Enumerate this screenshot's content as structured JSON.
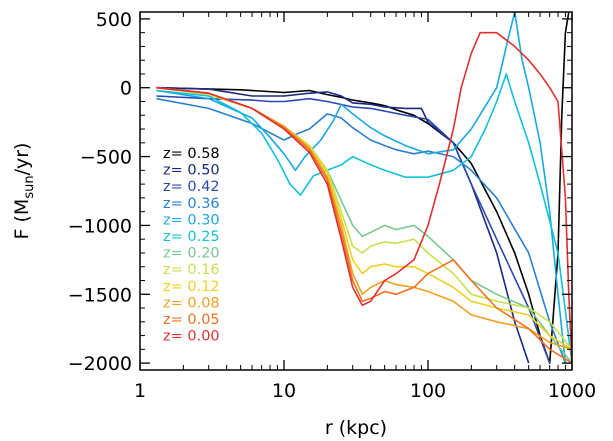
{
  "chart_data": {
    "type": "line",
    "title": "",
    "xlabel": "r (kpc)",
    "ylabel_parts": {
      "main": "F (M",
      "sub": "sun",
      "tail": "/yr)"
    },
    "xscale": "log",
    "xlim": [
      1,
      1000
    ],
    "ylim": [
      -2050,
      550
    ],
    "xticks": [
      {
        "value": 1,
        "label": "1"
      },
      {
        "value": 10,
        "label": "10"
      },
      {
        "value": 100,
        "label": "100"
      },
      {
        "value": 1000,
        "label": "1000"
      }
    ],
    "yticks": [
      {
        "value": 500,
        "label": "500"
      },
      {
        "value": 0,
        "label": "0"
      },
      {
        "value": -500,
        "label": "−500"
      },
      {
        "value": -1000,
        "label": "−1000"
      },
      {
        "value": -1500,
        "label": "−1500"
      },
      {
        "value": -2000,
        "label": "−2000"
      }
    ],
    "grid": false,
    "legend_position": "left",
    "series": [
      {
        "name": "z= 0.58",
        "color": "#000000",
        "points": [
          [
            1.3,
            0
          ],
          [
            5,
            -15
          ],
          [
            10,
            -35
          ],
          [
            15,
            -20
          ],
          [
            20,
            -50
          ],
          [
            25,
            -70
          ],
          [
            30,
            -90
          ],
          [
            40,
            -110
          ],
          [
            50,
            -130
          ],
          [
            60,
            -160
          ],
          [
            80,
            -200
          ],
          [
            100,
            -260
          ],
          [
            150,
            -400
          ],
          [
            200,
            -550
          ],
          [
            300,
            -900
          ],
          [
            400,
            -1200
          ],
          [
            500,
            -1500
          ],
          [
            600,
            -1800
          ],
          [
            700,
            -2000
          ],
          [
            800,
            -1200
          ],
          [
            850,
            -200
          ],
          [
            900,
            400
          ],
          [
            950,
            550
          ]
        ]
      },
      {
        "name": "z= 0.50",
        "color": "#1a2a80",
        "points": [
          [
            1.3,
            0
          ],
          [
            3,
            -10
          ],
          [
            6,
            -60
          ],
          [
            10,
            -60
          ],
          [
            15,
            -40
          ],
          [
            20,
            -30
          ],
          [
            25,
            -60
          ],
          [
            30,
            -110
          ],
          [
            40,
            -120
          ],
          [
            50,
            -140
          ],
          [
            70,
            -150
          ],
          [
            90,
            -150
          ],
          [
            100,
            -250
          ],
          [
            150,
            -400
          ],
          [
            200,
            -700
          ],
          [
            300,
            -1200
          ],
          [
            400,
            -1700
          ],
          [
            500,
            -2000
          ]
        ]
      },
      {
        "name": "z= 0.42",
        "color": "#2a48b0",
        "points": [
          [
            1.3,
            -60
          ],
          [
            3,
            -80
          ],
          [
            6,
            -90
          ],
          [
            8,
            -100
          ],
          [
            10,
            -100
          ],
          [
            15,
            -80
          ],
          [
            20,
            -100
          ],
          [
            30,
            -140
          ],
          [
            40,
            -150
          ],
          [
            50,
            -170
          ],
          [
            70,
            -200
          ],
          [
            100,
            -230
          ],
          [
            150,
            -400
          ],
          [
            200,
            -700
          ],
          [
            300,
            -1100
          ],
          [
            500,
            -1600
          ],
          [
            700,
            -2000
          ]
        ]
      },
      {
        "name": "z= 0.36",
        "color": "#2a80d0",
        "points": [
          [
            1.3,
            -80
          ],
          [
            3,
            -150
          ],
          [
            6,
            -260
          ],
          [
            10,
            -380
          ],
          [
            12,
            -340
          ],
          [
            15,
            -300
          ],
          [
            20,
            -190
          ],
          [
            25,
            -220
          ],
          [
            30,
            -290
          ],
          [
            40,
            -380
          ],
          [
            50,
            -420
          ],
          [
            60,
            -450
          ],
          [
            80,
            -480
          ],
          [
            100,
            -460
          ],
          [
            150,
            -500
          ],
          [
            200,
            -600
          ],
          [
            300,
            -800
          ],
          [
            500,
            -1200
          ],
          [
            700,
            -1700
          ],
          [
            900,
            -2000
          ]
        ]
      },
      {
        "name": "z= 0.30",
        "color": "#1aa8e0",
        "points": [
          [
            1.3,
            -20
          ],
          [
            3,
            -80
          ],
          [
            6,
            -220
          ],
          [
            8,
            -360
          ],
          [
            10,
            -480
          ],
          [
            12,
            -600
          ],
          [
            14,
            -500
          ],
          [
            18,
            -380
          ],
          [
            22,
            -240
          ],
          [
            25,
            -120
          ],
          [
            30,
            -190
          ],
          [
            40,
            -290
          ],
          [
            50,
            -350
          ],
          [
            70,
            -420
          ],
          [
            100,
            -480
          ],
          [
            150,
            -450
          ],
          [
            200,
            -300
          ],
          [
            300,
            0
          ],
          [
            350,
            300
          ],
          [
            400,
            550
          ],
          [
            450,
            200
          ],
          [
            500,
            0
          ],
          [
            600,
            -400
          ],
          [
            700,
            -900
          ],
          [
            800,
            -1500
          ],
          [
            900,
            -2000
          ]
        ]
      },
      {
        "name": "z= 0.25",
        "color": "#12c0d8",
        "points": [
          [
            1.3,
            -20
          ],
          [
            3,
            -60
          ],
          [
            5,
            -180
          ],
          [
            7,
            -330
          ],
          [
            9,
            -520
          ],
          [
            11,
            -700
          ],
          [
            13,
            -780
          ],
          [
            16,
            -640
          ],
          [
            20,
            -600
          ],
          [
            25,
            -560
          ],
          [
            30,
            -500
          ],
          [
            40,
            -560
          ],
          [
            50,
            -600
          ],
          [
            70,
            -650
          ],
          [
            100,
            -650
          ],
          [
            150,
            -600
          ],
          [
            200,
            -500
          ],
          [
            250,
            -300
          ],
          [
            300,
            -100
          ],
          [
            350,
            100
          ],
          [
            400,
            -100
          ],
          [
            500,
            -400
          ],
          [
            600,
            -700
          ],
          [
            800,
            -1200
          ],
          [
            1000,
            -2000
          ]
        ]
      },
      {
        "name": "z= 0.20",
        "color": "#78c890",
        "points": [
          [
            1.3,
            0
          ],
          [
            3,
            -50
          ],
          [
            6,
            -150
          ],
          [
            10,
            -280
          ],
          [
            15,
            -420
          ],
          [
            20,
            -600
          ],
          [
            25,
            -820
          ],
          [
            30,
            -1000
          ],
          [
            35,
            -1080
          ],
          [
            40,
            -1050
          ],
          [
            50,
            -1000
          ],
          [
            60,
            -1030
          ],
          [
            80,
            -1000
          ],
          [
            100,
            -1080
          ],
          [
            150,
            -1250
          ],
          [
            200,
            -1400
          ],
          [
            300,
            -1500
          ],
          [
            500,
            -1600
          ],
          [
            700,
            -1800
          ],
          [
            1000,
            -2000
          ]
        ]
      },
      {
        "name": "z= 0.16",
        "color": "#c8e050",
        "points": [
          [
            1.3,
            0
          ],
          [
            3,
            -50
          ],
          [
            6,
            -150
          ],
          [
            10,
            -280
          ],
          [
            15,
            -420
          ],
          [
            20,
            -600
          ],
          [
            25,
            -900
          ],
          [
            30,
            -1150
          ],
          [
            35,
            -1200
          ],
          [
            40,
            -1150
          ],
          [
            50,
            -1120
          ],
          [
            60,
            -1130
          ],
          [
            80,
            -1100
          ],
          [
            100,
            -1200
          ],
          [
            150,
            -1350
          ],
          [
            200,
            -1500
          ],
          [
            300,
            -1550
          ],
          [
            500,
            -1600
          ],
          [
            700,
            -1700
          ],
          [
            1000,
            -1900
          ]
        ]
      },
      {
        "name": "z= 0.12",
        "color": "#f0d020",
        "points": [
          [
            1.3,
            0
          ],
          [
            3,
            -40
          ],
          [
            6,
            -150
          ],
          [
            10,
            -280
          ],
          [
            15,
            -430
          ],
          [
            20,
            -620
          ],
          [
            25,
            -950
          ],
          [
            30,
            -1250
          ],
          [
            35,
            -1350
          ],
          [
            40,
            -1300
          ],
          [
            50,
            -1280
          ],
          [
            60,
            -1300
          ],
          [
            80,
            -1300
          ],
          [
            100,
            -1350
          ],
          [
            150,
            -1450
          ],
          [
            200,
            -1550
          ],
          [
            300,
            -1600
          ],
          [
            500,
            -1650
          ],
          [
            700,
            -1800
          ],
          [
            1000,
            -1900
          ]
        ]
      },
      {
        "name": "z= 0.08",
        "color": "#f0a020",
        "points": [
          [
            1.3,
            0
          ],
          [
            3,
            -40
          ],
          [
            6,
            -150
          ],
          [
            10,
            -280
          ],
          [
            15,
            -440
          ],
          [
            20,
            -650
          ],
          [
            25,
            -1000
          ],
          [
            30,
            -1350
          ],
          [
            35,
            -1500
          ],
          [
            40,
            -1450
          ],
          [
            50,
            -1400
          ],
          [
            60,
            -1430
          ],
          [
            80,
            -1450
          ],
          [
            100,
            -1480
          ],
          [
            150,
            -1550
          ],
          [
            200,
            -1650
          ],
          [
            300,
            -1700
          ],
          [
            500,
            -1750
          ],
          [
            700,
            -1850
          ],
          [
            1000,
            -1900
          ]
        ]
      },
      {
        "name": "z= 0.05",
        "color": "#f07020",
        "points": [
          [
            1.3,
            0
          ],
          [
            3,
            -40
          ],
          [
            6,
            -150
          ],
          [
            10,
            -290
          ],
          [
            15,
            -450
          ],
          [
            20,
            -670
          ],
          [
            25,
            -1050
          ],
          [
            30,
            -1400
          ],
          [
            35,
            -1550
          ],
          [
            40,
            -1530
          ],
          [
            50,
            -1480
          ],
          [
            60,
            -1500
          ],
          [
            80,
            -1450
          ],
          [
            100,
            -1350
          ],
          [
            150,
            -1250
          ],
          [
            200,
            -1400
          ],
          [
            300,
            -1600
          ],
          [
            500,
            -1750
          ],
          [
            700,
            -1900
          ],
          [
            1000,
            -2000
          ]
        ]
      },
      {
        "name": "z= 0.00",
        "color": "#e03030",
        "points": [
          [
            1.3,
            0
          ],
          [
            3,
            -40
          ],
          [
            6,
            -150
          ],
          [
            10,
            -300
          ],
          [
            15,
            -470
          ],
          [
            20,
            -700
          ],
          [
            25,
            -1100
          ],
          [
            30,
            -1450
          ],
          [
            35,
            -1580
          ],
          [
            40,
            -1550
          ],
          [
            50,
            -1400
          ],
          [
            60,
            -1350
          ],
          [
            80,
            -1250
          ],
          [
            100,
            -1000
          ],
          [
            120,
            -700
          ],
          [
            150,
            -300
          ],
          [
            170,
            0
          ],
          [
            200,
            250
          ],
          [
            230,
            400
          ],
          [
            300,
            400
          ],
          [
            400,
            300
          ],
          [
            500,
            200
          ],
          [
            600,
            100
          ],
          [
            700,
            0
          ],
          [
            800,
            -100
          ],
          [
            900,
            -800
          ],
          [
            950,
            -1500
          ],
          [
            1000,
            -2000
          ]
        ]
      }
    ]
  }
}
